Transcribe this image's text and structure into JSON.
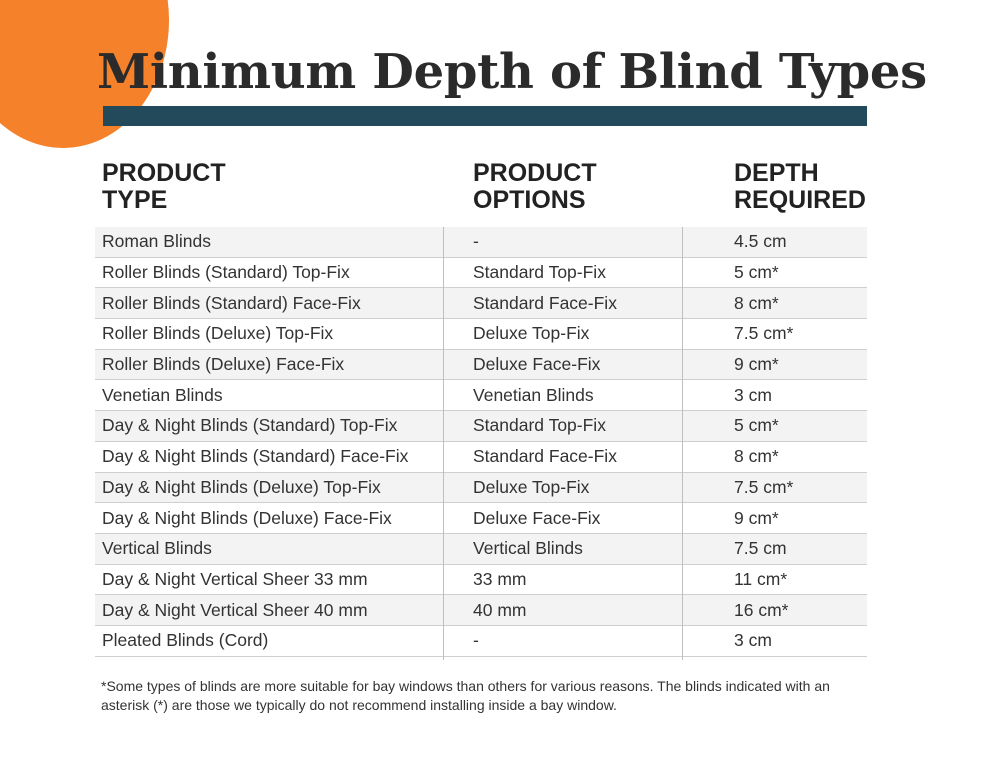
{
  "title": "Minimum Depth of Blind Types",
  "headers": {
    "product_type": "PRODUCT\nTYPE",
    "product_options": "PRODUCT\nOPTIONS",
    "depth_required": "DEPTH\nREQUIRED"
  },
  "rows": [
    {
      "type": "Roman Blinds",
      "option": "-",
      "depth": "4.5 cm"
    },
    {
      "type": "Roller Blinds (Standard) Top-Fix",
      "option": "Standard Top-Fix",
      "depth": "5 cm*"
    },
    {
      "type": "Roller Blinds (Standard) Face-Fix",
      "option": "Standard Face-Fix",
      "depth": "8 cm*"
    },
    {
      "type": "Roller Blinds (Deluxe) Top-Fix",
      "option": "Deluxe Top-Fix",
      "depth": "7.5 cm*"
    },
    {
      "type": "Roller Blinds (Deluxe) Face-Fix",
      "option": "Deluxe Face-Fix",
      "depth": "9 cm*"
    },
    {
      "type": "Venetian Blinds",
      "option": "Venetian Blinds",
      "depth": "3 cm"
    },
    {
      "type": "Day & Night Blinds (Standard) Top-Fix",
      "option": "Standard Top-Fix",
      "depth": "5 cm*"
    },
    {
      "type": "Day & Night Blinds (Standard) Face-Fix",
      "option": "Standard Face-Fix",
      "depth": "8 cm*"
    },
    {
      "type": "Day & Night Blinds (Deluxe) Top-Fix",
      "option": "Deluxe Top-Fix",
      "depth": "7.5 cm*"
    },
    {
      "type": "Day & Night Blinds (Deluxe) Face-Fix",
      "option": "Deluxe Face-Fix",
      "depth": "9 cm*"
    },
    {
      "type": "Vertical Blinds",
      "option": "Vertical Blinds",
      "depth": "7.5 cm"
    },
    {
      "type": "Day & Night Vertical Sheer 33 mm",
      "option": "33 mm",
      "depth": "11 cm*"
    },
    {
      "type": "Day & Night Vertical Sheer 40 mm",
      "option": "40 mm",
      "depth": "16 cm*"
    },
    {
      "type": "Pleated Blinds (Cord)",
      "option": "-",
      "depth": "3 cm"
    }
  ],
  "footnote": "*Some types of blinds are more suitable for bay windows than others for various reasons. The blinds indicated with an asterisk (*) are those we typically do not recommend installing inside a bay window.",
  "colors": {
    "accent_orange": "#f5822a",
    "title_bar": "#234a5a",
    "row_shade": "#f3f3f3"
  }
}
